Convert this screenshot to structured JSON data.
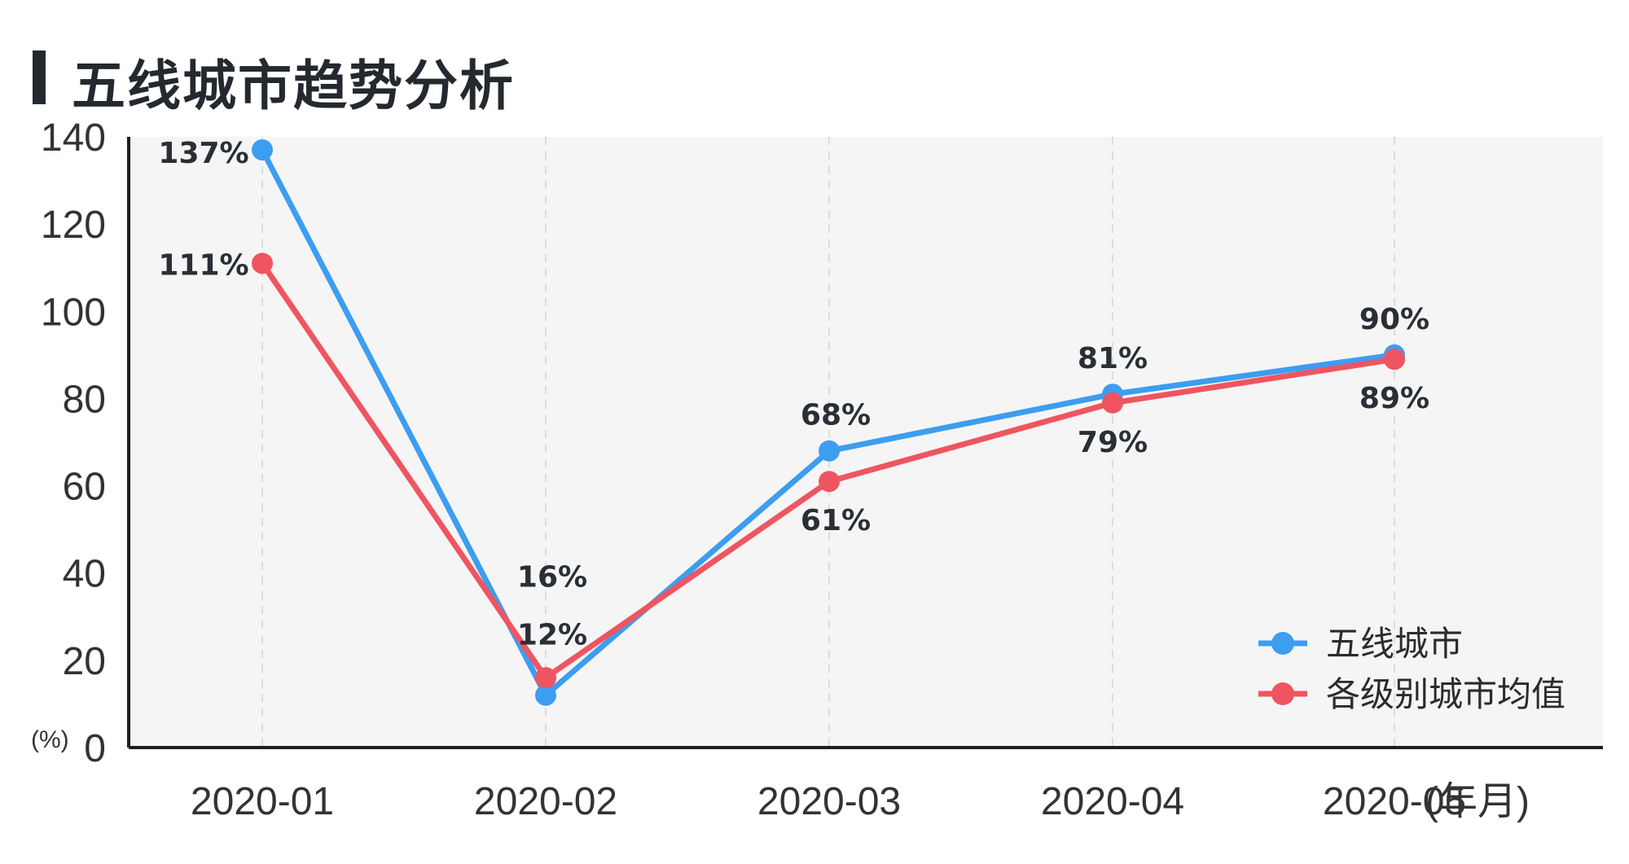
{
  "title": "五线城市趋势分析",
  "y_unit": "(%)",
  "x_unit": "(年月)",
  "chart_data": {
    "type": "line",
    "categories": [
      "2020-01",
      "2020-02",
      "2020-03",
      "2020-04",
      "2020-05"
    ],
    "ylim": [
      0,
      140
    ],
    "yticks": [
      0,
      20,
      40,
      60,
      80,
      100,
      120,
      140
    ],
    "grid": "vertical dashed",
    "legend_position": "bottom-right",
    "series": [
      {
        "name": "五线城市",
        "color": "#3d9df0",
        "values": [
          137,
          12,
          68,
          81,
          90
        ],
        "labels": [
          "137%",
          "12%",
          "68%",
          "81%",
          "90%"
        ]
      },
      {
        "name": "各级别城市均值",
        "color": "#ef5560",
        "values": [
          111,
          16,
          61,
          79,
          89
        ],
        "labels": [
          "111%",
          "16%",
          "61%",
          "79%",
          "89%"
        ]
      }
    ]
  }
}
